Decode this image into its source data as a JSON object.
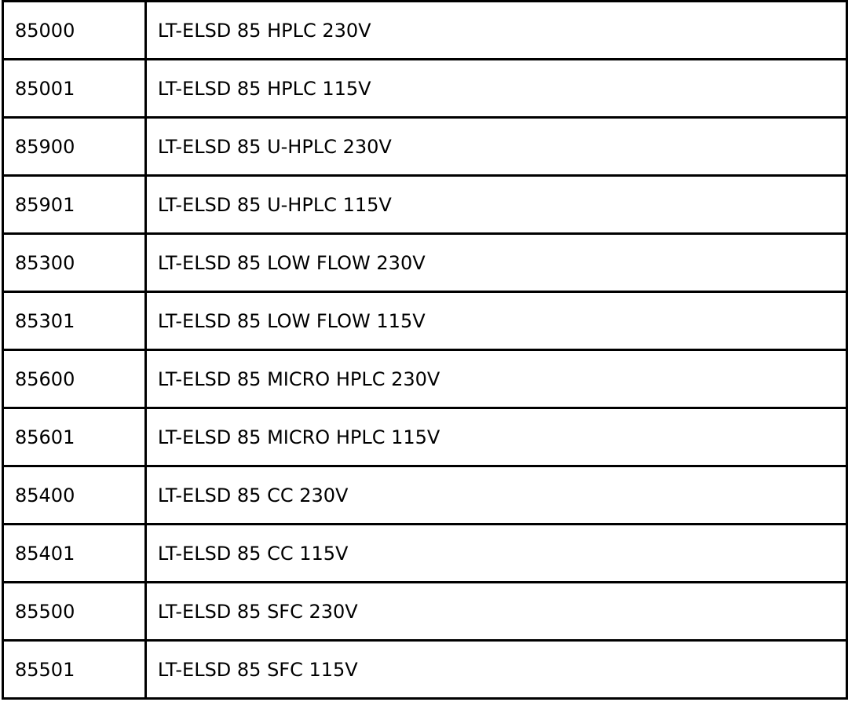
{
  "table": {
    "rows": [
      {
        "code": "85000",
        "description": "LT-ELSD 85 HPLC 230V"
      },
      {
        "code": "85001",
        "description": "LT-ELSD 85 HPLC 115V"
      },
      {
        "code": "85900",
        "description": "LT-ELSD 85 U-HPLC 230V"
      },
      {
        "code": "85901",
        "description": "LT-ELSD 85 U-HPLC 115V"
      },
      {
        "code": "85300",
        "description": "LT-ELSD 85 LOW FLOW 230V"
      },
      {
        "code": "85301",
        "description": "LT-ELSD 85 LOW FLOW 115V"
      },
      {
        "code": "85600",
        "description": "LT-ELSD 85 MICRO HPLC 230V"
      },
      {
        "code": "85601",
        "description": "LT-ELSD 85 MICRO HPLC 115V"
      },
      {
        "code": "85400",
        "description": "LT-ELSD 85 CC 230V"
      },
      {
        "code": "85401",
        "description": "LT-ELSD 85 CC 115V"
      },
      {
        "code": "85500",
        "description": "LT-ELSD 85 SFC 230V"
      },
      {
        "code": "85501",
        "description": "LT-ELSD 85 SFC 115V"
      }
    ]
  }
}
